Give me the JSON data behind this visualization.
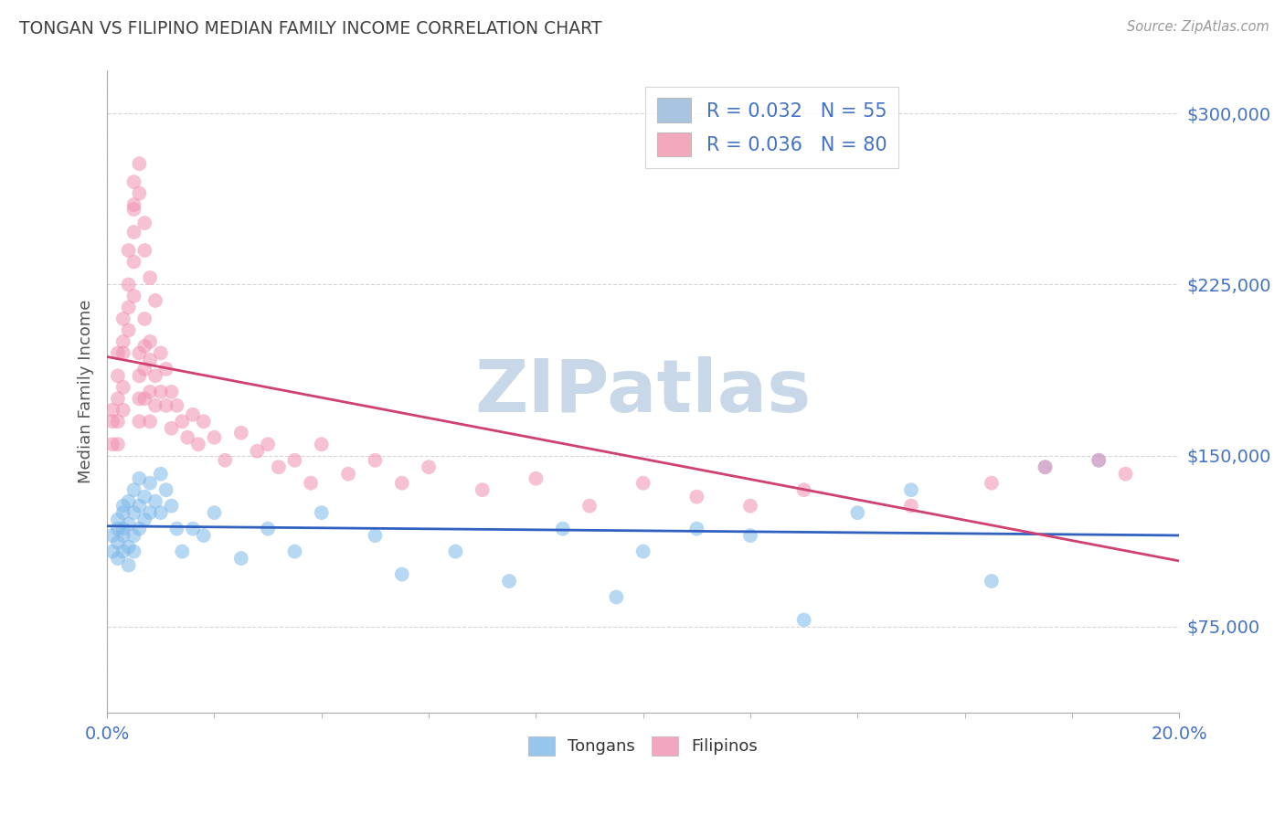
{
  "title": "TONGAN VS FILIPINO MEDIAN FAMILY INCOME CORRELATION CHART",
  "source_text": "Source: ZipAtlas.com",
  "ylabel": "Median Family Income",
  "xlim": [
    0.0,
    0.2
  ],
  "ylim": [
    37500,
    318750
  ],
  "yticks": [
    75000,
    150000,
    225000,
    300000
  ],
  "legend_entries": [
    {
      "label": "R = 0.032   N = 55",
      "color": "#a8c4e0"
    },
    {
      "label": "R = 0.036   N = 80",
      "color": "#f4a8bc"
    }
  ],
  "tongan_color": "#7db8e8",
  "filipino_color": "#f090b0",
  "tongan_line_color": "#3060c0",
  "filipino_line_color": "#d04070",
  "background_color": "#ffffff",
  "grid_color": "#cccccc",
  "title_color": "#404040",
  "axis_label_color": "#555555",
  "tick_label_color": "#4472c4",
  "watermark_text": "ZIPatlas",
  "watermark_color": "#c8d8e8",
  "tongan_x": [
    0.001,
    0.001,
    0.002,
    0.002,
    0.002,
    0.002,
    0.003,
    0.003,
    0.003,
    0.003,
    0.003,
    0.004,
    0.004,
    0.004,
    0.004,
    0.005,
    0.005,
    0.005,
    0.005,
    0.006,
    0.006,
    0.006,
    0.007,
    0.007,
    0.008,
    0.008,
    0.009,
    0.01,
    0.01,
    0.011,
    0.012,
    0.013,
    0.014,
    0.016,
    0.018,
    0.02,
    0.025,
    0.03,
    0.035,
    0.04,
    0.05,
    0.055,
    0.065,
    0.075,
    0.085,
    0.095,
    0.1,
    0.11,
    0.12,
    0.13,
    0.14,
    0.15,
    0.165,
    0.175,
    0.185
  ],
  "tongan_y": [
    115000,
    108000,
    122000,
    112000,
    118000,
    105000,
    128000,
    118000,
    108000,
    125000,
    115000,
    130000,
    120000,
    110000,
    102000,
    135000,
    125000,
    115000,
    108000,
    140000,
    128000,
    118000,
    132000,
    122000,
    138000,
    125000,
    130000,
    142000,
    125000,
    135000,
    128000,
    118000,
    108000,
    118000,
    115000,
    125000,
    105000,
    118000,
    108000,
    125000,
    115000,
    98000,
    108000,
    95000,
    118000,
    88000,
    108000,
    118000,
    115000,
    78000,
    125000,
    135000,
    95000,
    145000,
    148000
  ],
  "filipino_x": [
    0.001,
    0.001,
    0.001,
    0.002,
    0.002,
    0.002,
    0.002,
    0.002,
    0.003,
    0.003,
    0.003,
    0.003,
    0.003,
    0.004,
    0.004,
    0.004,
    0.004,
    0.005,
    0.005,
    0.005,
    0.005,
    0.005,
    0.006,
    0.006,
    0.006,
    0.006,
    0.007,
    0.007,
    0.007,
    0.007,
    0.008,
    0.008,
    0.008,
    0.008,
    0.009,
    0.009,
    0.01,
    0.01,
    0.011,
    0.011,
    0.012,
    0.012,
    0.013,
    0.014,
    0.015,
    0.016,
    0.017,
    0.018,
    0.02,
    0.022,
    0.025,
    0.028,
    0.03,
    0.032,
    0.035,
    0.038,
    0.04,
    0.045,
    0.05,
    0.055,
    0.06,
    0.07,
    0.08,
    0.09,
    0.1,
    0.11,
    0.12,
    0.13,
    0.15,
    0.165,
    0.175,
    0.185,
    0.19,
    0.005,
    0.006,
    0.006,
    0.007,
    0.007,
    0.008,
    0.009
  ],
  "filipino_y": [
    165000,
    155000,
    170000,
    175000,
    165000,
    155000,
    195000,
    185000,
    210000,
    200000,
    195000,
    180000,
    170000,
    240000,
    225000,
    215000,
    205000,
    270000,
    258000,
    248000,
    235000,
    220000,
    195000,
    185000,
    175000,
    165000,
    210000,
    198000,
    188000,
    175000,
    200000,
    192000,
    178000,
    165000,
    185000,
    172000,
    195000,
    178000,
    188000,
    172000,
    178000,
    162000,
    172000,
    165000,
    158000,
    168000,
    155000,
    165000,
    158000,
    148000,
    160000,
    152000,
    155000,
    145000,
    148000,
    138000,
    155000,
    142000,
    148000,
    138000,
    145000,
    135000,
    140000,
    128000,
    138000,
    132000,
    128000,
    135000,
    128000,
    138000,
    145000,
    148000,
    142000,
    260000,
    278000,
    265000,
    252000,
    240000,
    228000,
    218000
  ]
}
